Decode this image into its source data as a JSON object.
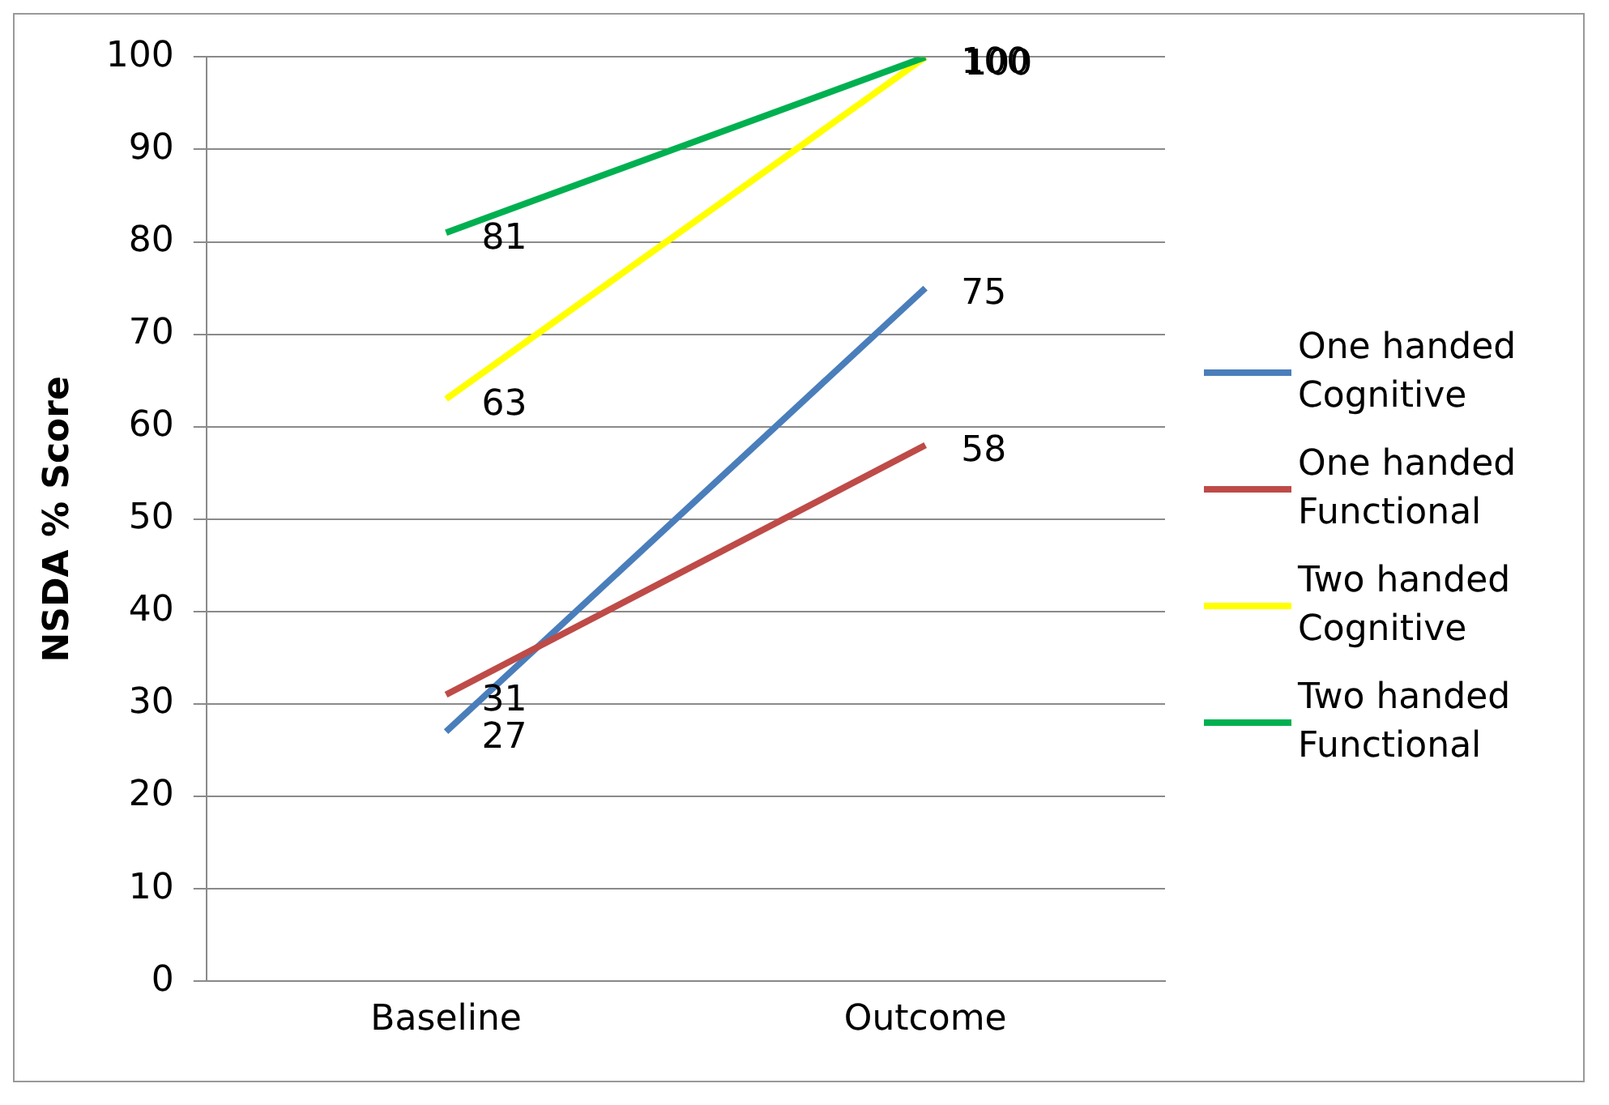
{
  "chart_data": {
    "type": "line",
    "ylabel": "NSDA % Score",
    "categories": [
      "Baseline",
      "Outcome"
    ],
    "series": [
      {
        "name": "One handed Cognitive",
        "color": "#4a7ebb",
        "values": [
          27,
          75
        ]
      },
      {
        "name": "One handed Functional",
        "color": "#be4b48",
        "values": [
          31,
          58
        ]
      },
      {
        "name": "Two handed Cognitive",
        "color": "#ffff00",
        "values": [
          63,
          100
        ]
      },
      {
        "name": "Two handed Functional",
        "color": "#00b050",
        "values": [
          81,
          100
        ]
      }
    ],
    "ylim": [
      0,
      100
    ],
    "yticks": [
      0,
      10,
      20,
      30,
      40,
      50,
      60,
      70,
      80,
      90,
      100
    ],
    "grid": "y",
    "legend": "right",
    "marker": "none",
    "line_style": "solid",
    "data_labels": true
  }
}
